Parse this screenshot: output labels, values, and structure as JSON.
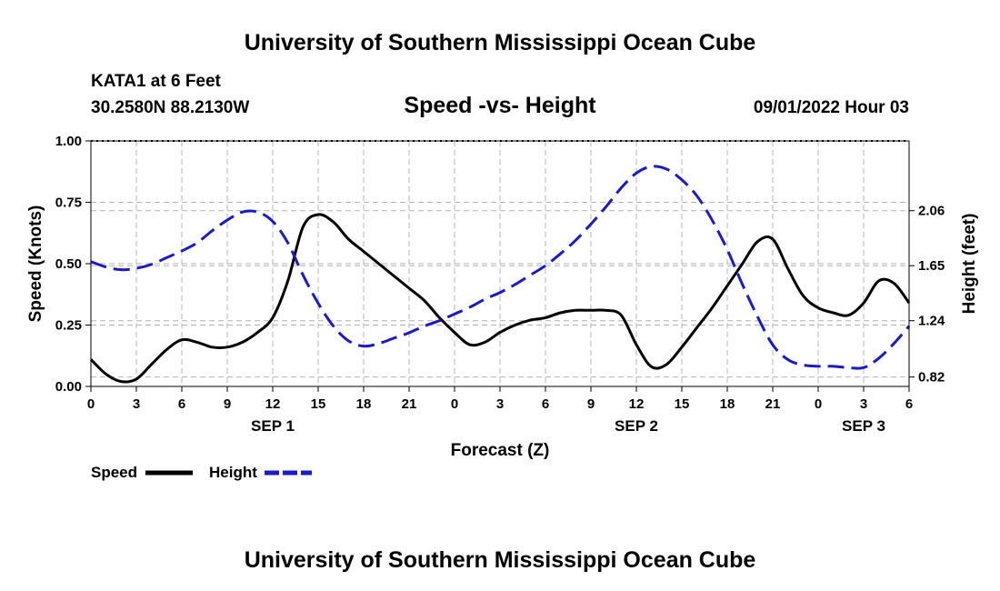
{
  "chart_data": {
    "type": "line",
    "title": "University of Southern Mississippi Ocean Cube",
    "footer_title": "University of Southern Mississippi Ocean Cube",
    "station": "KATA1 at 6 Feet",
    "location": "30.2580N  88.2130W",
    "subtitle": "Speed -vs- Height",
    "timestamp": "09/01/2022 Hour 03",
    "xlabel": "Forecast (Z)",
    "ylabel_left": "Speed (Knots)",
    "ylabel_right": "Height (feet)",
    "x_range": [
      0,
      54
    ],
    "x_ticks": [
      0,
      3,
      6,
      9,
      12,
      15,
      18,
      21,
      24,
      27,
      30,
      33,
      36,
      39,
      42,
      45,
      48,
      51,
      54
    ],
    "x_tick_labels": [
      "0",
      "3",
      "6",
      "9",
      "12",
      "15",
      "18",
      "21",
      "0",
      "3",
      "6",
      "9",
      "12",
      "15",
      "18",
      "21",
      "0",
      "3",
      "6"
    ],
    "date_labels": [
      {
        "x": 12,
        "label": "SEP 1"
      },
      {
        "x": 36,
        "label": "SEP 2"
      },
      {
        "x": 51,
        "label": "SEP 3"
      }
    ],
    "ylim_left": [
      0,
      1
    ],
    "y_ticks_left": [
      0,
      0.25,
      0.5,
      0.75,
      1
    ],
    "y_tick_labels_left": [
      "0.00",
      "0.25",
      "0.50",
      "0.75",
      "1.00"
    ],
    "ylim_right": [
      0.75,
      2.58
    ],
    "y_ticks_right": [
      0.82,
      1.24,
      1.65,
      2.06
    ],
    "y_tick_labels_right": [
      "0.82",
      "1.24",
      "1.65",
      "2.06"
    ],
    "grid": true,
    "series": [
      {
        "name": "Speed",
        "axis": "left",
        "color": "#000000",
        "dash": "solid",
        "x": [
          0,
          1,
          2,
          3,
          4,
          5,
          6,
          7,
          8,
          9,
          10,
          11,
          12,
          13,
          14,
          15,
          16,
          17,
          18,
          19,
          20,
          21,
          22,
          23,
          24,
          25,
          26,
          27,
          28,
          29,
          30,
          31,
          32,
          33,
          34,
          35,
          36,
          37,
          38,
          39,
          40,
          41,
          42,
          43,
          44,
          45,
          46,
          47,
          48,
          49,
          50,
          51,
          52,
          53,
          54
        ],
        "values": [
          0.11,
          0.05,
          0.02,
          0.03,
          0.09,
          0.15,
          0.19,
          0.18,
          0.16,
          0.16,
          0.18,
          0.22,
          0.28,
          0.43,
          0.65,
          0.7,
          0.67,
          0.6,
          0.55,
          0.5,
          0.45,
          0.4,
          0.35,
          0.28,
          0.22,
          0.17,
          0.18,
          0.22,
          0.25,
          0.27,
          0.28,
          0.3,
          0.31,
          0.31,
          0.31,
          0.29,
          0.17,
          0.08,
          0.09,
          0.16,
          0.24,
          0.32,
          0.41,
          0.5,
          0.59,
          0.6,
          0.48,
          0.37,
          0.32,
          0.3,
          0.29,
          0.34,
          0.43,
          0.42,
          0.34
        ]
      },
      {
        "name": "Height",
        "axis": "right",
        "color": "#1a1acc",
        "dash": "dashed",
        "x": [
          0,
          1,
          2,
          3,
          4,
          5,
          6,
          7,
          8,
          9,
          10,
          11,
          12,
          13,
          14,
          15,
          16,
          17,
          18,
          19,
          20,
          21,
          22,
          23,
          24,
          25,
          26,
          27,
          28,
          29,
          30,
          31,
          32,
          33,
          34,
          35,
          36,
          37,
          38,
          39,
          40,
          41,
          42,
          43,
          44,
          45,
          46,
          47,
          48,
          49,
          50,
          51,
          52,
          53,
          54
        ],
        "values": [
          1.68,
          1.64,
          1.62,
          1.63,
          1.66,
          1.71,
          1.76,
          1.82,
          1.91,
          1.99,
          2.05,
          2.05,
          1.98,
          1.82,
          1.58,
          1.37,
          1.2,
          1.09,
          1.05,
          1.07,
          1.11,
          1.15,
          1.2,
          1.24,
          1.29,
          1.34,
          1.4,
          1.45,
          1.51,
          1.58,
          1.65,
          1.74,
          1.84,
          1.96,
          2.09,
          2.23,
          2.34,
          2.39,
          2.37,
          2.29,
          2.17,
          1.99,
          1.77,
          1.51,
          1.27,
          1.06,
          0.95,
          0.91,
          0.9,
          0.9,
          0.89,
          0.89,
          0.96,
          1.07,
          1.2
        ]
      }
    ],
    "legend": [
      {
        "label": "Speed",
        "color": "#000000",
        "dash": "solid"
      },
      {
        "label": "Height",
        "color": "#1a1acc",
        "dash": "dashed"
      }
    ],
    "legend_position": "bottom-left"
  }
}
